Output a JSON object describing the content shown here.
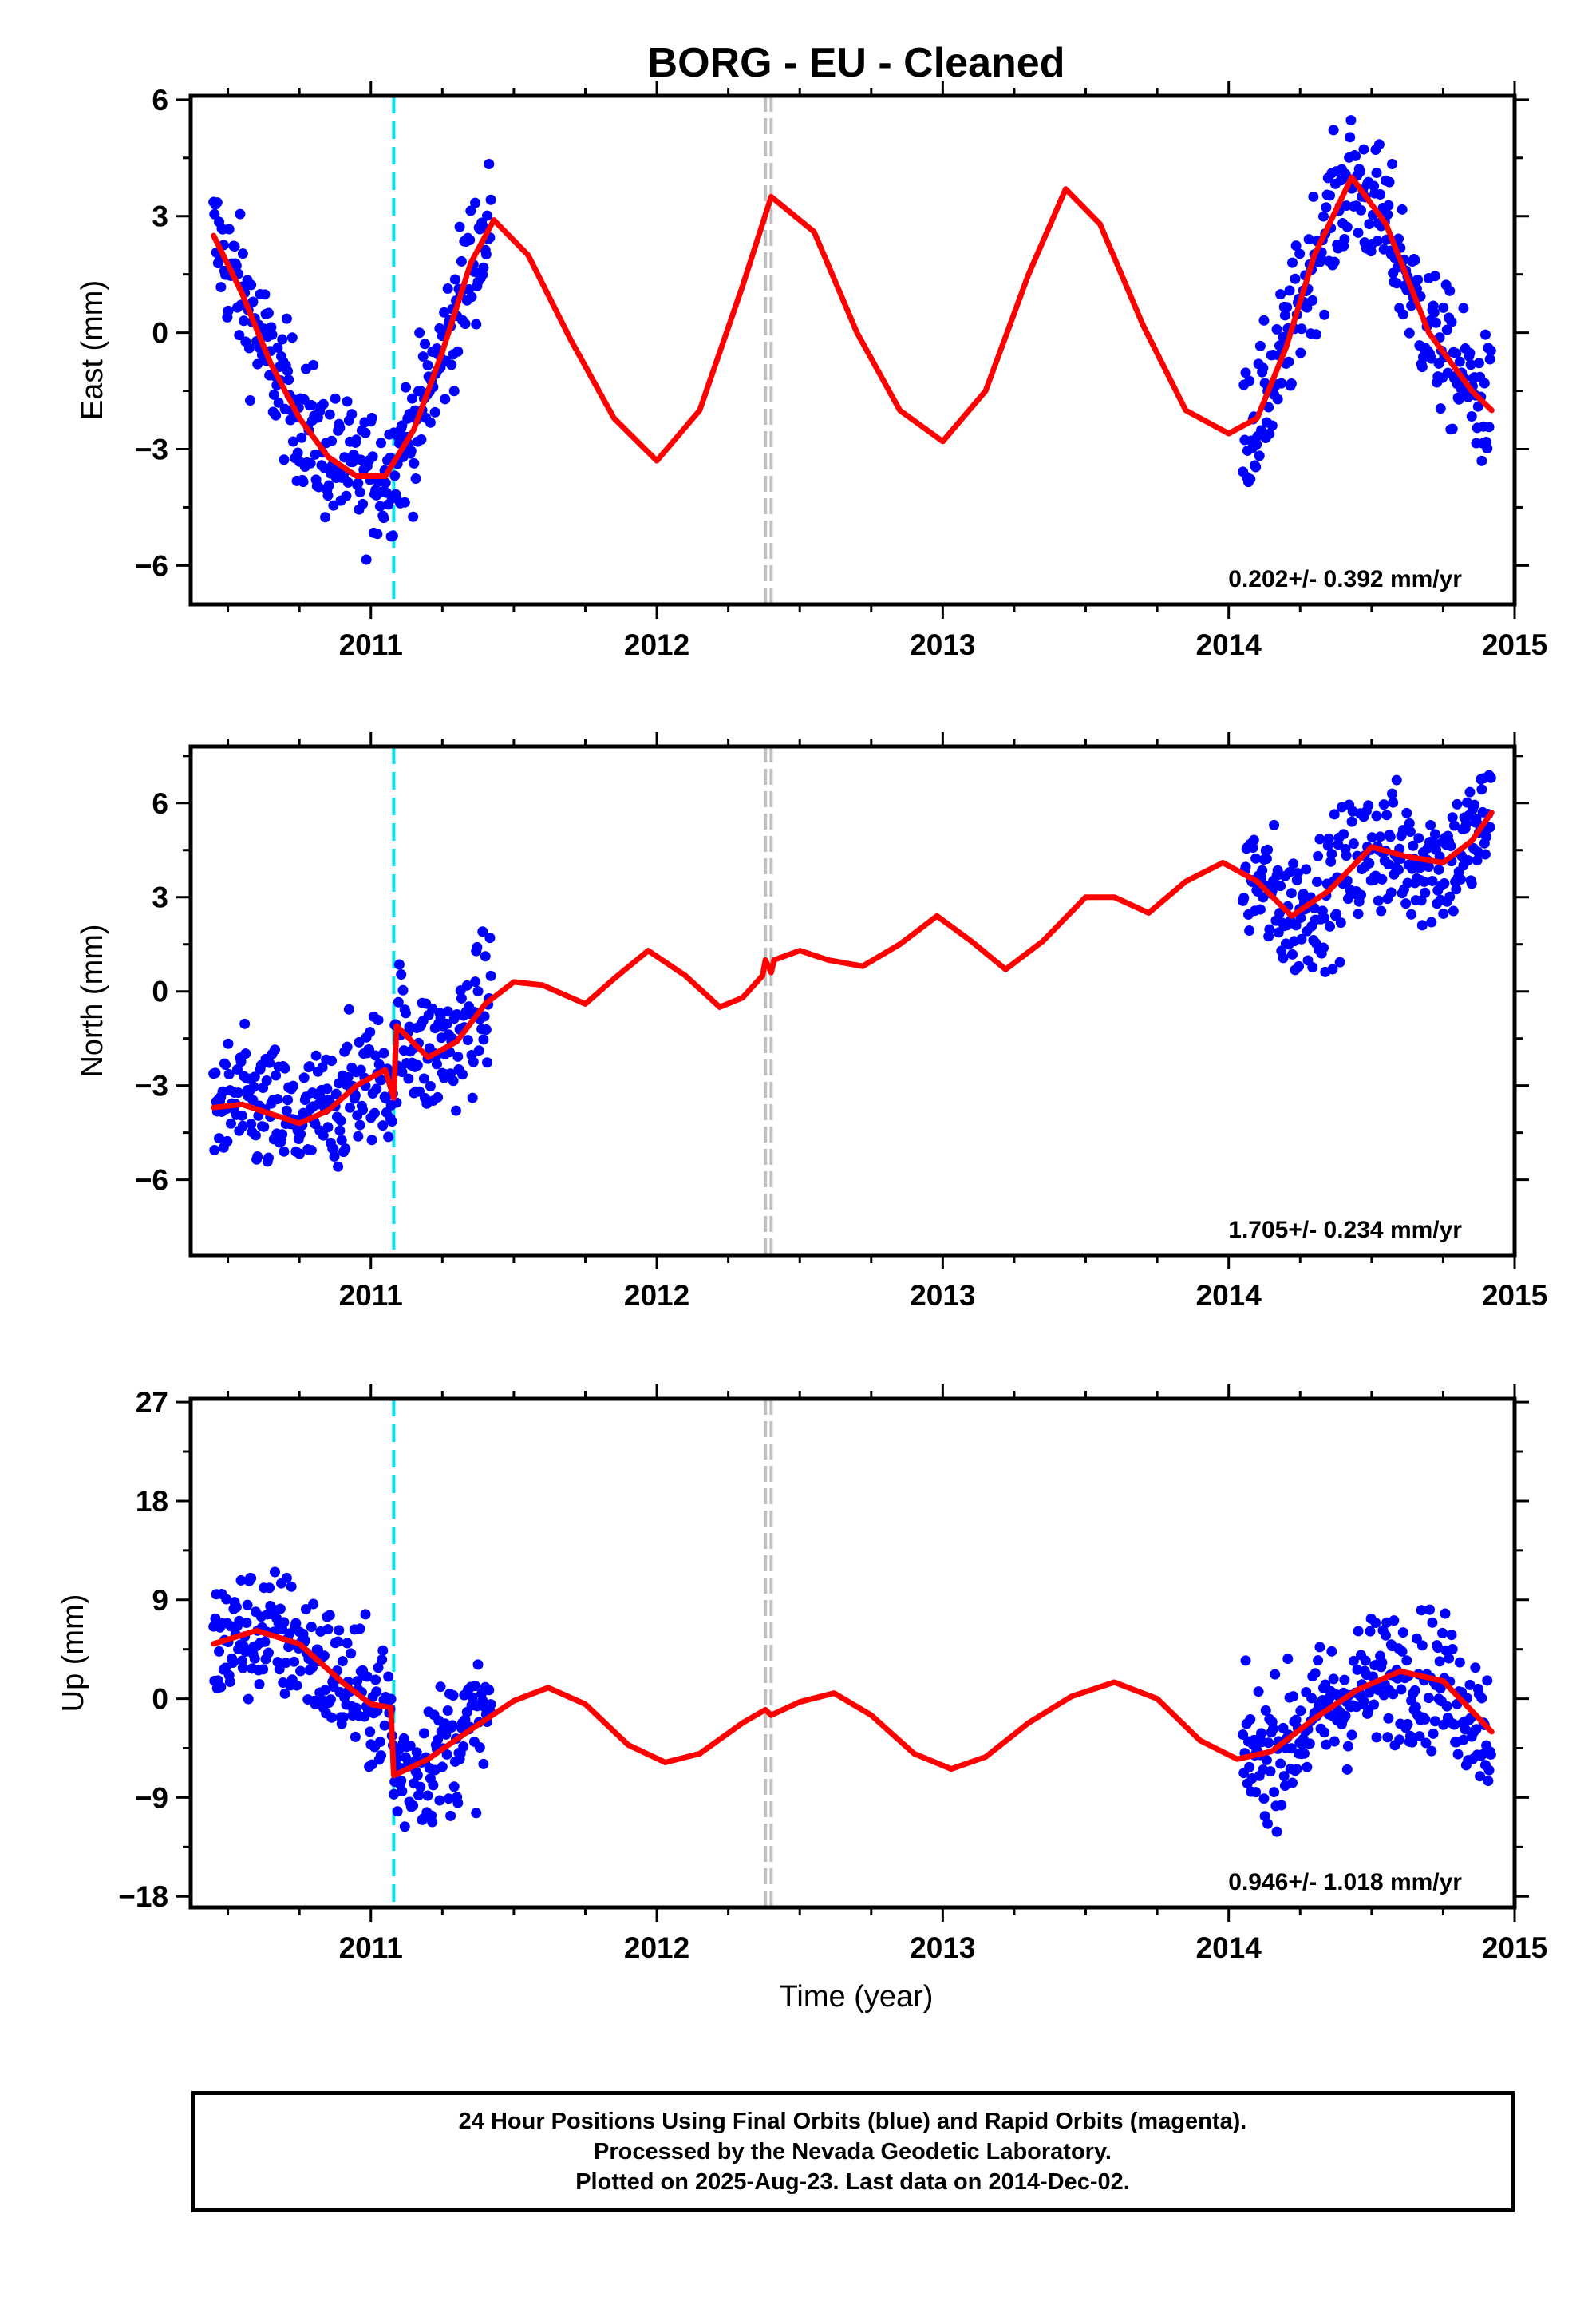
{
  "title": "BORG  - EU - Cleaned",
  "xlabel": "Time (year)",
  "colors": {
    "data": "#0000ff",
    "model": "#ff0000",
    "antenna_change": "#00e5ee",
    "gap": "#c0c0c0",
    "frame": "#000000"
  },
  "chart_data": [
    {
      "type": "scatter",
      "panel": "east",
      "ylabel": "East (mm)",
      "xlim": [
        2010.37,
        2015.0
      ],
      "ylim": [
        -7,
        6.1
      ],
      "xticks": [
        2011,
        2012,
        2013,
        2014,
        2015
      ],
      "yticks": [
        -6,
        -3,
        0,
        3,
        6
      ],
      "rate_label": "0.202+/- 0.392 mm/yr",
      "antenna_change_x": 2011.08,
      "gap_lines_x": [
        2012.38,
        2012.4
      ],
      "series": [
        {
          "kind": "observed",
          "segments": [
            [
              2010.45,
              2011.42
            ],
            [
              2014.05,
              2014.92
            ]
          ]
        },
        {
          "kind": "model",
          "x": [
            2010.45,
            2010.55,
            2010.65,
            2010.75,
            2010.85,
            2010.95,
            2011.05,
            2011.15,
            2011.25,
            2011.35,
            2011.43,
            2011.55,
            2011.7,
            2011.85,
            2012.0,
            2012.15,
            2012.3,
            2012.4,
            2012.55,
            2012.7,
            2012.85,
            2013.0,
            2013.15,
            2013.3,
            2013.43,
            2013.55,
            2013.7,
            2013.85,
            2014.0,
            2014.1,
            2014.2,
            2014.3,
            2014.43,
            2014.55,
            2014.7,
            2014.85,
            2014.92
          ],
          "y": [
            2.5,
            1.0,
            -0.8,
            -2.2,
            -3.2,
            -3.7,
            -3.7,
            -2.5,
            -0.5,
            1.8,
            2.9,
            2.0,
            -0.2,
            -2.2,
            -3.3,
            -2.0,
            1.2,
            3.5,
            2.6,
            0.0,
            -2.0,
            -2.8,
            -1.5,
            1.5,
            3.7,
            2.8,
            0.2,
            -2.0,
            -2.6,
            -2.2,
            -0.4,
            2.0,
            4.0,
            2.8,
            0.0,
            -1.5,
            -2.0
          ]
        }
      ]
    },
    {
      "type": "scatter",
      "panel": "north",
      "ylabel": "North (mm)",
      "xlim": [
        2010.37,
        2015.0
      ],
      "ylim": [
        -8.4,
        7.8
      ],
      "xticks": [
        2011,
        2012,
        2013,
        2014,
        2015
      ],
      "yticks": [
        -6,
        -3,
        0,
        3,
        6
      ],
      "rate_label": "1.705+/- 0.234 mm/yr",
      "antenna_change_x": 2011.08,
      "gap_lines_x": [
        2012.38,
        2012.4
      ],
      "series": [
        {
          "kind": "observed",
          "segments": [
            [
              2010.45,
              2011.42
            ],
            [
              2014.05,
              2014.92
            ]
          ]
        },
        {
          "kind": "model",
          "x": [
            2010.45,
            2010.55,
            2010.65,
            2010.75,
            2010.85,
            2010.95,
            2011.05,
            2011.08,
            2011.09,
            2011.2,
            2011.3,
            2011.4,
            2011.5,
            2011.6,
            2011.75,
            2011.85,
            2011.97,
            2012.1,
            2012.22,
            2012.3,
            2012.37,
            2012.38,
            2012.4,
            2012.41,
            2012.5,
            2012.6,
            2012.72,
            2012.85,
            2012.98,
            2013.1,
            2013.22,
            2013.35,
            2013.5,
            2013.6,
            2013.72,
            2013.85,
            2013.98,
            2014.1,
            2014.22,
            2014.35,
            2014.5,
            2014.62,
            2014.75,
            2014.85,
            2014.92
          ],
          "y": [
            -3.7,
            -3.6,
            -3.9,
            -4.2,
            -3.8,
            -3.0,
            -2.5,
            -3.4,
            -1.1,
            -2.1,
            -1.6,
            -0.4,
            0.3,
            0.2,
            -0.4,
            0.4,
            1.3,
            0.5,
            -0.5,
            -0.2,
            0.5,
            1.0,
            0.6,
            1.0,
            1.3,
            1.0,
            0.8,
            1.5,
            2.4,
            1.6,
            0.7,
            1.6,
            3.0,
            3.0,
            2.5,
            3.5,
            4.1,
            3.5,
            2.4,
            3.2,
            4.6,
            4.3,
            4.1,
            4.8,
            5.7
          ]
        }
      ]
    },
    {
      "type": "scatter",
      "panel": "up",
      "ylabel": "Up (mm)",
      "xlim": [
        2010.37,
        2015.0
      ],
      "ylim": [
        -19,
        27.3
      ],
      "xticks": [
        2011,
        2012,
        2013,
        2014,
        2015
      ],
      "yticks": [
        -18,
        -9,
        0,
        9,
        18,
        27
      ],
      "rate_label": "0.946+/- 1.018 mm/yr",
      "antenna_change_x": 2011.08,
      "gap_lines_x": [
        2012.38,
        2012.4
      ],
      "series": [
        {
          "kind": "observed",
          "segments": [
            [
              2010.45,
              2011.42
            ],
            [
              2014.05,
              2014.92
            ]
          ]
        },
        {
          "kind": "model",
          "x": [
            2010.45,
            2010.6,
            2010.75,
            2010.9,
            2011.0,
            2011.07,
            2011.08,
            2011.2,
            2011.35,
            2011.5,
            2011.62,
            2011.75,
            2011.9,
            2012.03,
            2012.15,
            2012.3,
            2012.38,
            2012.4,
            2012.5,
            2012.62,
            2012.75,
            2012.9,
            2013.03,
            2013.15,
            2013.3,
            2013.45,
            2013.6,
            2013.75,
            2013.9,
            2014.03,
            2014.15,
            2014.3,
            2014.45,
            2014.6,
            2014.75,
            2014.92
          ],
          "y": [
            5.0,
            6.2,
            5.0,
            1.5,
            -0.5,
            -0.8,
            -7.0,
            -5.5,
            -2.8,
            -0.2,
            1.0,
            -0.5,
            -4.2,
            -5.8,
            -5.0,
            -2.2,
            -1.0,
            -1.5,
            -0.3,
            0.5,
            -1.5,
            -5.0,
            -6.4,
            -5.3,
            -2.2,
            0.2,
            1.5,
            0.0,
            -3.8,
            -5.5,
            -4.8,
            -1.8,
            0.8,
            2.5,
            1.6,
            -3.0
          ]
        }
      ]
    }
  ],
  "footer": {
    "line1": "24 Hour Positions Using Final Orbits (blue) and Rapid Orbits (magenta).",
    "line2": "Processed by the Nevada Geodetic Laboratory.",
    "line3": "Plotted on 2025-Aug-23. Last data on 2014-Dec-02."
  }
}
